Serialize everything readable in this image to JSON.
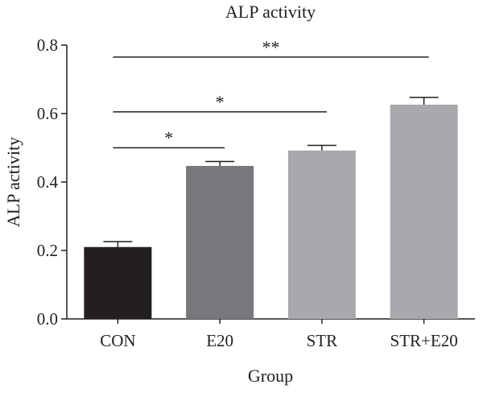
{
  "chart_data": {
    "type": "bar",
    "title": "ALP activity",
    "xlabel": "Group",
    "ylabel": "ALP activity",
    "categories": [
      "CON",
      "E20",
      "STR",
      "STR+E20"
    ],
    "values": [
      0.21,
      0.447,
      0.492,
      0.626
    ],
    "errors": [
      0.016,
      0.013,
      0.015,
      0.021
    ],
    "colors": [
      "#231f20",
      "#77787b",
      "#a7a9ac",
      "#a7a9ac"
    ],
    "ylim": [
      0,
      0.8
    ],
    "yticks": [
      0.0,
      0.2,
      0.4,
      0.6,
      0.8
    ],
    "ytick_labels": [
      "0.0",
      "0.2",
      "0.4",
      "0.6",
      "0.8"
    ],
    "grid": false,
    "significance": [
      {
        "from": "CON",
        "to": "E20",
        "label": "*",
        "y": 0.5
      },
      {
        "from": "CON",
        "to": "STR",
        "label": "*",
        "y": 0.605
      },
      {
        "from": "CON",
        "to": "STR+E20",
        "label": "**",
        "y": 0.765
      }
    ]
  }
}
